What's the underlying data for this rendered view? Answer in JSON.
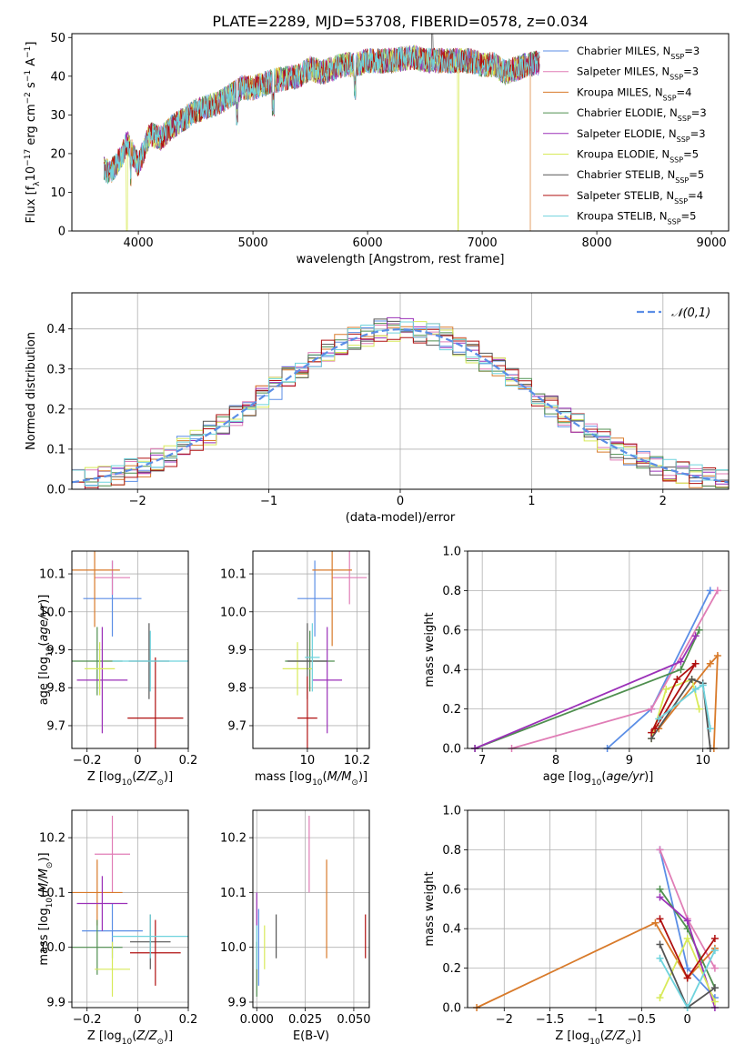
{
  "title": "PLATE=2289, MJD=53708, FIBERID=0578, z=0.034",
  "colors": [
    "#5b8ee6",
    "#e07db6",
    "#d87a2a",
    "#4f8f4f",
    "#9b30b8",
    "#d8ea5a",
    "#555555",
    "#b01010",
    "#6fd3dd"
  ],
  "legend_entries": [
    {
      "pre": "Chabrier MILES, N",
      "sub": "SSP",
      "post": "=3"
    },
    {
      "pre": "Salpeter MILES, N",
      "sub": "SSP",
      "post": "=3"
    },
    {
      "pre": "Kroupa MILES, N",
      "sub": "SSP",
      "post": "=4"
    },
    {
      "pre": "Chabrier ELODIE, N",
      "sub": "SSP",
      "post": "=3"
    },
    {
      "pre": "Salpeter ELODIE, N",
      "sub": "SSP",
      "post": "=3"
    },
    {
      "pre": "Kroupa ELODIE, N",
      "sub": "SSP",
      "post": "=5"
    },
    {
      "pre": "Chabrier STELIB, N",
      "sub": "SSP",
      "post": "=5"
    },
    {
      "pre": "Salpeter STELIB, N",
      "sub": "SSP",
      "post": "=4"
    },
    {
      "pre": "Kroupa STELIB, N",
      "sub": "SSP",
      "post": "=5"
    }
  ],
  "chart_data": [
    {
      "id": "spectrum",
      "type": "line",
      "xlabel": "wavelength [Angstrom, rest frame]",
      "ylabel": "Flux [f_λ10^-17 erg cm^-2 s^-1 A^-1]",
      "xlim": [
        3420,
        9150
      ],
      "ylim": [
        0,
        51
      ],
      "xticks": [
        4000,
        5000,
        6000,
        7000,
        8000,
        9000
      ],
      "yticks": [
        0,
        10,
        20,
        30,
        40,
        50
      ],
      "grid": false,
      "spectrum_anchors": [
        [
          3700,
          16
        ],
        [
          3750,
          15
        ],
        [
          3850,
          19
        ],
        [
          3900,
          23
        ],
        [
          3950,
          20
        ],
        [
          4000,
          17
        ],
        [
          4100,
          25
        ],
        [
          4200,
          24
        ],
        [
          4300,
          27
        ],
        [
          4400,
          29
        ],
        [
          4500,
          31
        ],
        [
          4600,
          32
        ],
        [
          4700,
          33
        ],
        [
          4800,
          35
        ],
        [
          4900,
          37
        ],
        [
          5000,
          37
        ],
        [
          5100,
          38
        ],
        [
          5200,
          39
        ],
        [
          5300,
          39.5
        ],
        [
          5400,
          40
        ],
        [
          5500,
          42
        ],
        [
          5600,
          41
        ],
        [
          5700,
          42
        ],
        [
          5800,
          43
        ],
        [
          5900,
          43
        ],
        [
          6000,
          44
        ],
        [
          6100,
          44
        ],
        [
          6200,
          44
        ],
        [
          6300,
          44.5
        ],
        [
          6400,
          45
        ],
        [
          6500,
          44
        ],
        [
          6600,
          44
        ],
        [
          6700,
          44
        ],
        [
          6800,
          44
        ],
        [
          6900,
          44
        ],
        [
          7000,
          43
        ],
        [
          7100,
          43
        ],
        [
          7200,
          41
        ],
        [
          7300,
          42
        ],
        [
          7400,
          43
        ],
        [
          7500,
          43.5
        ]
      ],
      "cutoffs": [
        {
          "wavelength": 3900,
          "series_index": 5
        },
        {
          "wavelength": 6790,
          "series_index": 5
        },
        {
          "wavelength": 7420,
          "series_index": 2
        }
      ]
    },
    {
      "id": "residual_hist",
      "type": "histogram",
      "xlabel": "(data-model)/error",
      "ylabel": "Normed distribution",
      "xlim": [
        -2.5,
        2.5
      ],
      "ylim": [
        0,
        0.49
      ],
      "xticks": [
        -2,
        -1,
        0,
        1,
        2
      ],
      "yticks": [
        0.0,
        0.1,
        0.2,
        0.3,
        0.4
      ],
      "grid": true,
      "bin_width": 0.1,
      "reference_curve": {
        "name": "𝒩(0,1)",
        "mean": 0,
        "sigma": 1
      },
      "legend_position": "upper right"
    },
    {
      "id": "age_vs_Z",
      "type": "errorbar",
      "xlabel": "Z [log10(Z/Z☉)]",
      "ylabel": "age [log10(age/yr)]",
      "xlim": [
        -0.26,
        0.2
      ],
      "ylim": [
        9.64,
        10.16
      ],
      "xticks": [
        -0.2,
        0.0,
        0.2
      ],
      "yticks": [
        9.7,
        9.8,
        9.9,
        10.0,
        10.1
      ],
      "grid": true,
      "points": [
        {
          "x": -0.1,
          "y": 10.035,
          "xerr": 0.115,
          "yerr": 0.1
        },
        {
          "x": -0.1,
          "y": 10.09,
          "xerr": 0.07,
          "yerr": 0.045
        },
        {
          "x": -0.17,
          "y": 10.11,
          "xerr": 0.1,
          "yerr": 0.15
        },
        {
          "x": -0.16,
          "y": 9.87,
          "xerr": 0.1,
          "yerr": 0.09
        },
        {
          "x": -0.14,
          "y": 9.82,
          "xerr": 0.1,
          "yerr": 0.14
        },
        {
          "x": -0.15,
          "y": 9.85,
          "xerr": 0.06,
          "yerr": 0.07
        },
        {
          "x": 0.045,
          "y": 9.87,
          "xerr": 0.08,
          "yerr": 0.1
        },
        {
          "x": 0.07,
          "y": 9.72,
          "xerr": 0.11,
          "yerr": 0.16
        },
        {
          "x": 0.05,
          "y": 9.87,
          "xerr": 0.15,
          "yerr": 0.08
        }
      ]
    },
    {
      "id": "age_vs_mass",
      "type": "errorbar",
      "xlabel": "mass [log10(M/M☉)]",
      "ylabel": "",
      "xlim": [
        9.78,
        10.25
      ],
      "ylim": [
        9.64,
        10.16
      ],
      "xticks": [
        10.0,
        10.2
      ],
      "yticks": [
        9.7,
        9.8,
        9.9,
        10.0,
        10.1
      ],
      "grid": true,
      "points": [
        {
          "x": 10.03,
          "y": 10.035,
          "xerr": 0.07,
          "yerr": 0.1
        },
        {
          "x": 10.17,
          "y": 10.09,
          "xerr": 0.07,
          "yerr": 0.07
        },
        {
          "x": 10.1,
          "y": 10.11,
          "xerr": 0.08,
          "yerr": 0.2
        },
        {
          "x": 10.01,
          "y": 9.87,
          "xerr": 0.1,
          "yerr": 0.08
        },
        {
          "x": 10.08,
          "y": 9.82,
          "xerr": 0.06,
          "yerr": 0.14
        },
        {
          "x": 9.96,
          "y": 9.85,
          "xerr": 0.06,
          "yerr": 0.07
        },
        {
          "x": 10.0,
          "y": 9.87,
          "xerr": 0.08,
          "yerr": 0.1
        },
        {
          "x": 10.0,
          "y": 9.72,
          "xerr": 0.04,
          "yerr": 0.11
        },
        {
          "x": 10.02,
          "y": 9.88,
          "xerr": 0.03,
          "yerr": 0.09
        }
      ]
    },
    {
      "id": "weight_vs_age",
      "type": "line",
      "xlabel": "age [log10(age/yr)]",
      "ylabel": "mass weight",
      "xlim": [
        6.8,
        10.35
      ],
      "ylim": [
        0,
        1
      ],
      "xticks": [
        7,
        8,
        9,
        10
      ],
      "yticks": [
        0.0,
        0.2,
        0.4,
        0.6,
        0.8,
        1.0
      ],
      "grid": true,
      "series": [
        {
          "points": [
            [
              8.7,
              0.0
            ],
            [
              9.3,
              0.2
            ],
            [
              10.1,
              0.8
            ]
          ]
        },
        {
          "points": [
            [
              7.4,
              0.0
            ],
            [
              9.3,
              0.2
            ],
            [
              10.2,
              0.8
            ]
          ]
        },
        {
          "points": [
            [
              9.4,
              0.1
            ],
            [
              10.1,
              0.43
            ],
            [
              10.2,
              0.47
            ],
            [
              10.15,
              0.0
            ]
          ]
        },
        {
          "points": [
            [
              6.9,
              0.0
            ],
            [
              9.7,
              0.4
            ],
            [
              9.95,
              0.6
            ]
          ]
        },
        {
          "points": [
            [
              6.9,
              0.0
            ],
            [
              9.7,
              0.44
            ],
            [
              9.9,
              0.57
            ]
          ]
        },
        {
          "points": [
            [
              9.3,
              0.05
            ],
            [
              9.5,
              0.3
            ],
            [
              9.85,
              0.35
            ],
            [
              9.95,
              0.2
            ]
          ]
        },
        {
          "points": [
            [
              9.3,
              0.05
            ],
            [
              9.85,
              0.35
            ],
            [
              10.0,
              0.33
            ],
            [
              10.1,
              0.0
            ]
          ]
        },
        {
          "points": [
            [
              9.3,
              0.08
            ],
            [
              9.65,
              0.35
            ],
            [
              9.9,
              0.43
            ],
            [
              9.35,
              0.1
            ]
          ]
        },
        {
          "points": [
            [
              9.4,
              0.15
            ],
            [
              9.9,
              0.3
            ],
            [
              10.0,
              0.32
            ],
            [
              10.1,
              0.1
            ]
          ]
        }
      ]
    },
    {
      "id": "mass_vs_Z",
      "type": "errorbar",
      "xlabel": "Z [log10(Z/Z☉)]",
      "ylabel": "mass [log10(M/M☉)]",
      "xlim": [
        -0.26,
        0.2
      ],
      "ylim": [
        9.89,
        10.25
      ],
      "xticks": [
        -0.2,
        0.0,
        0.2
      ],
      "yticks": [
        9.9,
        10.0,
        10.1,
        10.2
      ],
      "grid": true,
      "points": [
        {
          "x": -0.1,
          "y": 10.03,
          "xerr": 0.12,
          "yerr": 0.05
        },
        {
          "x": -0.1,
          "y": 10.17,
          "xerr": 0.07,
          "yerr": 0.07
        },
        {
          "x": -0.16,
          "y": 10.1,
          "xerr": 0.1,
          "yerr": 0.06
        },
        {
          "x": -0.16,
          "y": 10.0,
          "xerr": 0.1,
          "yerr": 0.05
        },
        {
          "x": -0.14,
          "y": 10.08,
          "xerr": 0.1,
          "yerr": 0.05
        },
        {
          "x": -0.1,
          "y": 9.96,
          "xerr": 0.07,
          "yerr": 0.05
        },
        {
          "x": 0.05,
          "y": 10.01,
          "xerr": 0.08,
          "yerr": 0.05
        },
        {
          "x": 0.07,
          "y": 9.99,
          "xerr": 0.1,
          "yerr": 0.06
        },
        {
          "x": 0.05,
          "y": 10.02,
          "xerr": 0.15,
          "yerr": 0.04
        }
      ]
    },
    {
      "id": "mass_vs_ebv",
      "type": "errorbar",
      "xlabel": "E(B-V)",
      "ylabel": "",
      "xlim": [
        -0.002,
        0.058
      ],
      "ylim": [
        9.89,
        10.25
      ],
      "xticks": [
        0.0,
        0.025,
        0.05
      ],
      "xtick_labels": [
        "0.000",
        "0.025",
        "0.050"
      ],
      "yticks": [
        9.9,
        10.0,
        10.1,
        10.2
      ],
      "grid": true,
      "points": [
        {
          "x": 0.001,
          "y": 10.0,
          "xerr": 0,
          "yerr": 0.07
        },
        {
          "x": 0.027,
          "y": 10.17,
          "xerr": 0,
          "yerr": 0.07
        },
        {
          "x": 0.036,
          "y": 10.07,
          "xerr": 0,
          "yerr": 0.09
        },
        {
          "x": 0.0,
          "y": 9.96,
          "xerr": 0,
          "yerr": 0.05
        },
        {
          "x": 0.0,
          "y": 10.07,
          "xerr": 0,
          "yerr": 0.03
        },
        {
          "x": 0.004,
          "y": 10.0,
          "xerr": 0,
          "yerr": 0.04
        },
        {
          "x": 0.01,
          "y": 10.02,
          "xerr": 0,
          "yerr": 0.04
        },
        {
          "x": 0.056,
          "y": 10.02,
          "xerr": 0,
          "yerr": 0.04
        },
        {
          "x": 0.0,
          "y": 10.0,
          "xerr": 0,
          "yerr": 0.04
        }
      ]
    },
    {
      "id": "weight_vs_Z",
      "type": "line",
      "xlabel": "Z [log10(Z/Z☉)]",
      "ylabel": "mass weight",
      "xlim": [
        -2.4,
        0.45
      ],
      "ylim": [
        0,
        1
      ],
      "xticks": [
        -2.0,
        -1.5,
        -1.0,
        -0.5,
        0.0
      ],
      "yticks": [
        0.0,
        0.2,
        0.4,
        0.6,
        0.8,
        1.0
      ],
      "grid": true,
      "series": [
        {
          "points": [
            [
              -0.3,
              0.8
            ],
            [
              0.0,
              0.2
            ],
            [
              0.3,
              0.05
            ]
          ]
        },
        {
          "points": [
            [
              -0.3,
              0.8
            ],
            [
              0.0,
              0.45
            ],
            [
              0.3,
              0.2
            ]
          ]
        },
        {
          "points": [
            [
              -2.3,
              0.0
            ],
            [
              -0.35,
              0.43
            ],
            [
              0.0,
              0.15
            ],
            [
              0.3,
              0.3
            ]
          ]
        },
        {
          "points": [
            [
              -0.3,
              0.6
            ],
            [
              0.0,
              0.4
            ],
            [
              0.3,
              0.1
            ]
          ]
        },
        {
          "points": [
            [
              -0.3,
              0.56
            ],
            [
              0.0,
              0.44
            ],
            [
              0.3,
              0.0
            ]
          ]
        },
        {
          "points": [
            [
              -0.3,
              0.05
            ],
            [
              0.0,
              0.35
            ],
            [
              0.3,
              0.03
            ]
          ]
        },
        {
          "points": [
            [
              -0.3,
              0.32
            ],
            [
              0.0,
              0.0
            ],
            [
              0.3,
              0.1
            ]
          ]
        },
        {
          "points": [
            [
              -0.3,
              0.45
            ],
            [
              0.0,
              0.15
            ],
            [
              0.3,
              0.35
            ]
          ]
        },
        {
          "points": [
            [
              -0.3,
              0.25
            ],
            [
              0.0,
              0.0
            ],
            [
              0.3,
              0.29
            ]
          ]
        }
      ]
    }
  ]
}
